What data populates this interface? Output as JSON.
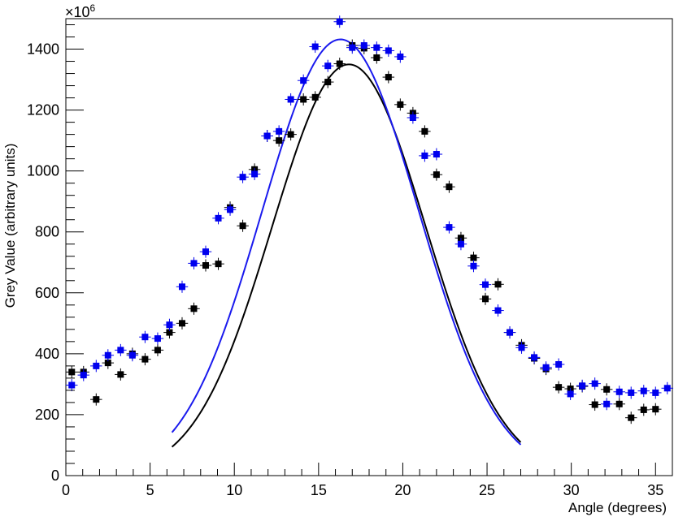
{
  "chart_data": {
    "type": "scatter",
    "title": "",
    "xlabel": "Angle (degrees)",
    "ylabel": "Grey Value (arbitrary units)",
    "y_multiplier_base": "×10",
    "y_multiplier_exp": "6",
    "xlim": [
      0,
      36
    ],
    "ylim": [
      0,
      1500
    ],
    "x_ticks": [
      0,
      5,
      10,
      15,
      20,
      25,
      30,
      35
    ],
    "y_ticks": [
      0,
      200,
      400,
      600,
      800,
      1000,
      1200,
      1400
    ],
    "x_tick_labels": [
      "0",
      "5",
      "10",
      "15",
      "20",
      "25",
      "30",
      "35"
    ],
    "y_tick_labels": [
      "0",
      "200",
      "400",
      "600",
      "800",
      "1000",
      "1200",
      "1400"
    ],
    "grid": false,
    "legend": "none",
    "series": [
      {
        "color": "#000000",
        "marker": "square",
        "x": [
          0.35,
          1.05,
          1.8,
          2.5,
          3.25,
          3.95,
          4.7,
          5.45,
          6.15,
          6.9,
          7.6,
          8.3,
          9.05,
          9.75,
          10.5,
          11.2,
          11.95,
          12.65,
          13.35,
          14.1,
          14.8,
          15.55,
          16.25,
          17.0,
          17.7,
          18.45,
          19.15,
          19.85,
          20.6,
          21.3,
          22.0,
          22.75,
          23.45,
          24.2,
          24.9,
          25.65,
          26.35,
          27.05,
          27.8,
          28.5,
          29.25,
          29.95,
          30.65,
          31.4,
          32.1,
          32.85,
          33.55,
          34.3,
          35.0
        ],
        "y": [
          340,
          340,
          250,
          370,
          332,
          400,
          382,
          412,
          470,
          500,
          548,
          690,
          695,
          880,
          820,
          1005,
          1115,
          1100,
          1120,
          1235,
          1242,
          1292,
          1352,
          1412,
          1403,
          1372,
          1308,
          1218,
          1190,
          1130,
          988,
          948,
          780,
          715,
          580,
          628,
          470,
          428,
          385,
          350,
          290,
          285,
          293,
          233,
          283,
          235,
          190,
          216,
          218
        ],
        "x_err": 0.35,
        "y_err": 20
      },
      {
        "color": "#0000ee",
        "marker": "square",
        "x": [
          0.35,
          1.05,
          1.8,
          2.5,
          3.25,
          3.95,
          4.7,
          5.45,
          6.15,
          6.9,
          7.6,
          8.3,
          9.05,
          9.75,
          10.5,
          11.2,
          11.95,
          12.65,
          13.35,
          14.1,
          14.8,
          15.55,
          16.25,
          17.0,
          17.7,
          18.45,
          19.15,
          19.85,
          20.6,
          21.3,
          22.0,
          22.75,
          23.45,
          24.2,
          24.9,
          25.65,
          26.35,
          27.05,
          27.8,
          28.5,
          29.25,
          29.95,
          30.65,
          31.4,
          32.1,
          32.85,
          33.55,
          34.3,
          35.0,
          35.7
        ],
        "y": [
          297,
          330,
          360,
          395,
          412,
          395,
          455,
          450,
          495,
          620,
          697,
          735,
          845,
          873,
          980,
          990,
          1115,
          1130,
          1235,
          1297,
          1408,
          1345,
          1490,
          1405,
          1412,
          1405,
          1395,
          1375,
          1175,
          1050,
          1055,
          815,
          760,
          688,
          627,
          542,
          470,
          420,
          388,
          355,
          365,
          268,
          295,
          302,
          235,
          275,
          272,
          278,
          272,
          287
        ],
        "x_err": 0.35,
        "y_err": 20
      }
    ],
    "fits": [
      {
        "color": "#000000",
        "type": "gaussian",
        "amplitude": 1350,
        "mean": 16.8,
        "sigma": 4.55,
        "baseline": 0,
        "x_range": [
          6.3,
          27.0
        ]
      },
      {
        "color": "#1a1aee",
        "type": "gaussian",
        "amplitude": 1432,
        "mean": 16.3,
        "sigma": 4.65,
        "baseline": 0,
        "x_range": [
          6.3,
          27.0
        ]
      }
    ]
  }
}
